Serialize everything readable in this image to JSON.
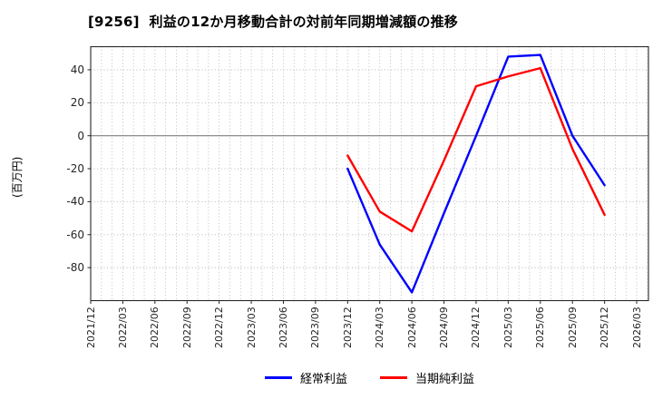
{
  "chart_data": {
    "type": "line",
    "title": "[9256]  利益の12か月移動合計の対前年同期増減額の推移",
    "ylabel": "(百万円)",
    "x": [
      "2023/12",
      "2024/03",
      "2024/06",
      "2024/09",
      "2024/12",
      "2025/03",
      "2025/06",
      "2025/09",
      "2025/12"
    ],
    "series": [
      {
        "name": "経常利益",
        "color": "#0000ff",
        "values": [
          -20,
          -66,
          -95,
          -47,
          0,
          48,
          49,
          0,
          -30
        ]
      },
      {
        "name": "当期純利益",
        "color": "#ff0000",
        "values": [
          -12,
          -46,
          -58,
          -15,
          30,
          36,
          41,
          -8,
          -48
        ]
      }
    ],
    "x_tick_labels": [
      "2021/12",
      "2022/03",
      "2022/06",
      "2022/09",
      "2022/12",
      "2023/03",
      "2023/06",
      "2023/09",
      "2023/12",
      "2024/03",
      "2024/06",
      "2024/09",
      "2024/12",
      "2025/03",
      "2025/06",
      "2025/09",
      "2025/12",
      "2026/03"
    ],
    "y_tick_values": [
      40,
      20,
      0,
      -20,
      -40,
      -60,
      -80
    ],
    "x_axis_start": "2021/12",
    "xlim_months": [
      0,
      52.1
    ],
    "ylim": [
      -100,
      54
    ],
    "grid": "dotted monthly vertical and 20-step horizontal gridlines, solid gray zero line",
    "legend_position": "bottom-center",
    "unit": "百万円"
  }
}
